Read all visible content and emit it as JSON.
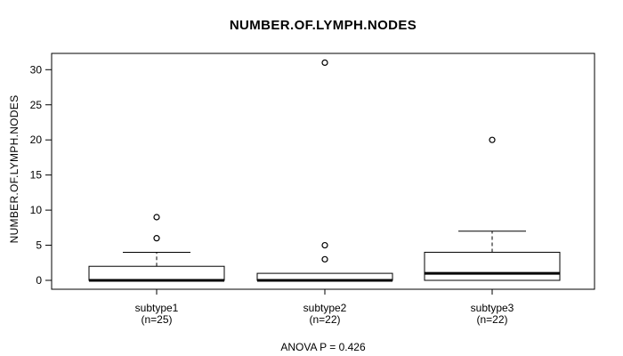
{
  "chart_data": {
    "type": "boxplot",
    "title": "NUMBER.OF.LYMPH.NODES",
    "xlabel": "",
    "ylabel": "NUMBER.OF.LYMPH.NODES",
    "ylim": [
      0,
      31
    ],
    "yticks": [
      0,
      5,
      10,
      15,
      20,
      25,
      30
    ],
    "grid": false,
    "annotation": "ANOVA P = 0.426",
    "box_stroke_color": "#000000",
    "box_fill_color": "#ffffff",
    "background_color": "#ffffff",
    "groups": [
      {
        "label": "subtype1",
        "n_label": "(n=25)",
        "n": 25,
        "stats": {
          "whisker_low": 0,
          "q1": 0,
          "median": 0,
          "q3": 2,
          "whisker_high": 4
        },
        "outliers": [
          6,
          9
        ]
      },
      {
        "label": "subtype2",
        "n_label": "(n=22)",
        "n": 22,
        "stats": {
          "whisker_low": 0,
          "q1": 0,
          "median": 0,
          "q3": 1,
          "whisker_high": 1
        },
        "outliers": [
          3,
          5,
          31
        ]
      },
      {
        "label": "subtype3",
        "n_label": "(n=22)",
        "n": 22,
        "stats": {
          "whisker_low": 0,
          "q1": 0,
          "median": 1,
          "q3": 4,
          "whisker_high": 7
        },
        "outliers": [
          20
        ]
      }
    ]
  }
}
